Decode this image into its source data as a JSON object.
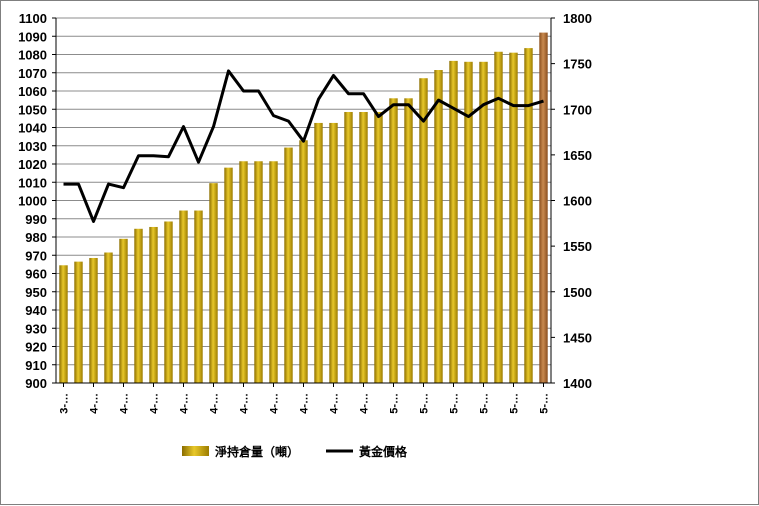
{
  "chart_data": {
    "type": "bar+line",
    "title": "",
    "y_left": {
      "ylim": [
        900,
        1100
      ],
      "ticks": [
        900,
        910,
        920,
        930,
        940,
        950,
        960,
        970,
        980,
        990,
        1000,
        1010,
        1020,
        1030,
        1040,
        1050,
        1060,
        1070,
        1080,
        1090,
        1100
      ]
    },
    "y_right": {
      "ylim": [
        1400,
        1800
      ],
      "ticks": [
        1400,
        1450,
        1500,
        1550,
        1600,
        1650,
        1700,
        1750,
        1800
      ]
    },
    "x_tick_labels": [
      "3-…",
      "4-…",
      "4-…",
      "4-…",
      "4-…",
      "4-…",
      "4-…",
      "4-…",
      "4-…",
      "4-…",
      "4-…",
      "5-…",
      "5-…",
      "5-…",
      "5-…",
      "5-…",
      "5-…"
    ],
    "series": [
      {
        "name": "淨持倉量（噸）",
        "type": "bar",
        "axis": "left",
        "color": "#C9A400",
        "last_color": "#B5733A",
        "values": [
          964.5,
          966.5,
          968.5,
          971.5,
          979,
          984.5,
          985.5,
          988.5,
          994.5,
          994.5,
          1009.5,
          1018,
          1021.5,
          1021.5,
          1021.5,
          1029,
          1033,
          1042.5,
          1042.5,
          1048.5,
          1048.5,
          1048.5,
          1056,
          1056,
          1067,
          1071.5,
          1076.5,
          1076,
          1076,
          1081.5,
          1081,
          1083.5,
          1092
        ]
      },
      {
        "name": "黃金價格",
        "type": "line",
        "axis": "right",
        "color": "#000000",
        "values": [
          1618,
          1618,
          1577,
          1618,
          1614,
          1649,
          1649,
          1648,
          1681,
          1642,
          1681,
          1742,
          1720,
          1720,
          1693,
          1687,
          1665,
          1711,
          1737,
          1717,
          1717,
          1692,
          1705,
          1705,
          1687,
          1710,
          1701,
          1692,
          1705,
          1712,
          1704,
          1704,
          1709
        ]
      }
    ],
    "legend": {
      "position": "bottom"
    }
  }
}
